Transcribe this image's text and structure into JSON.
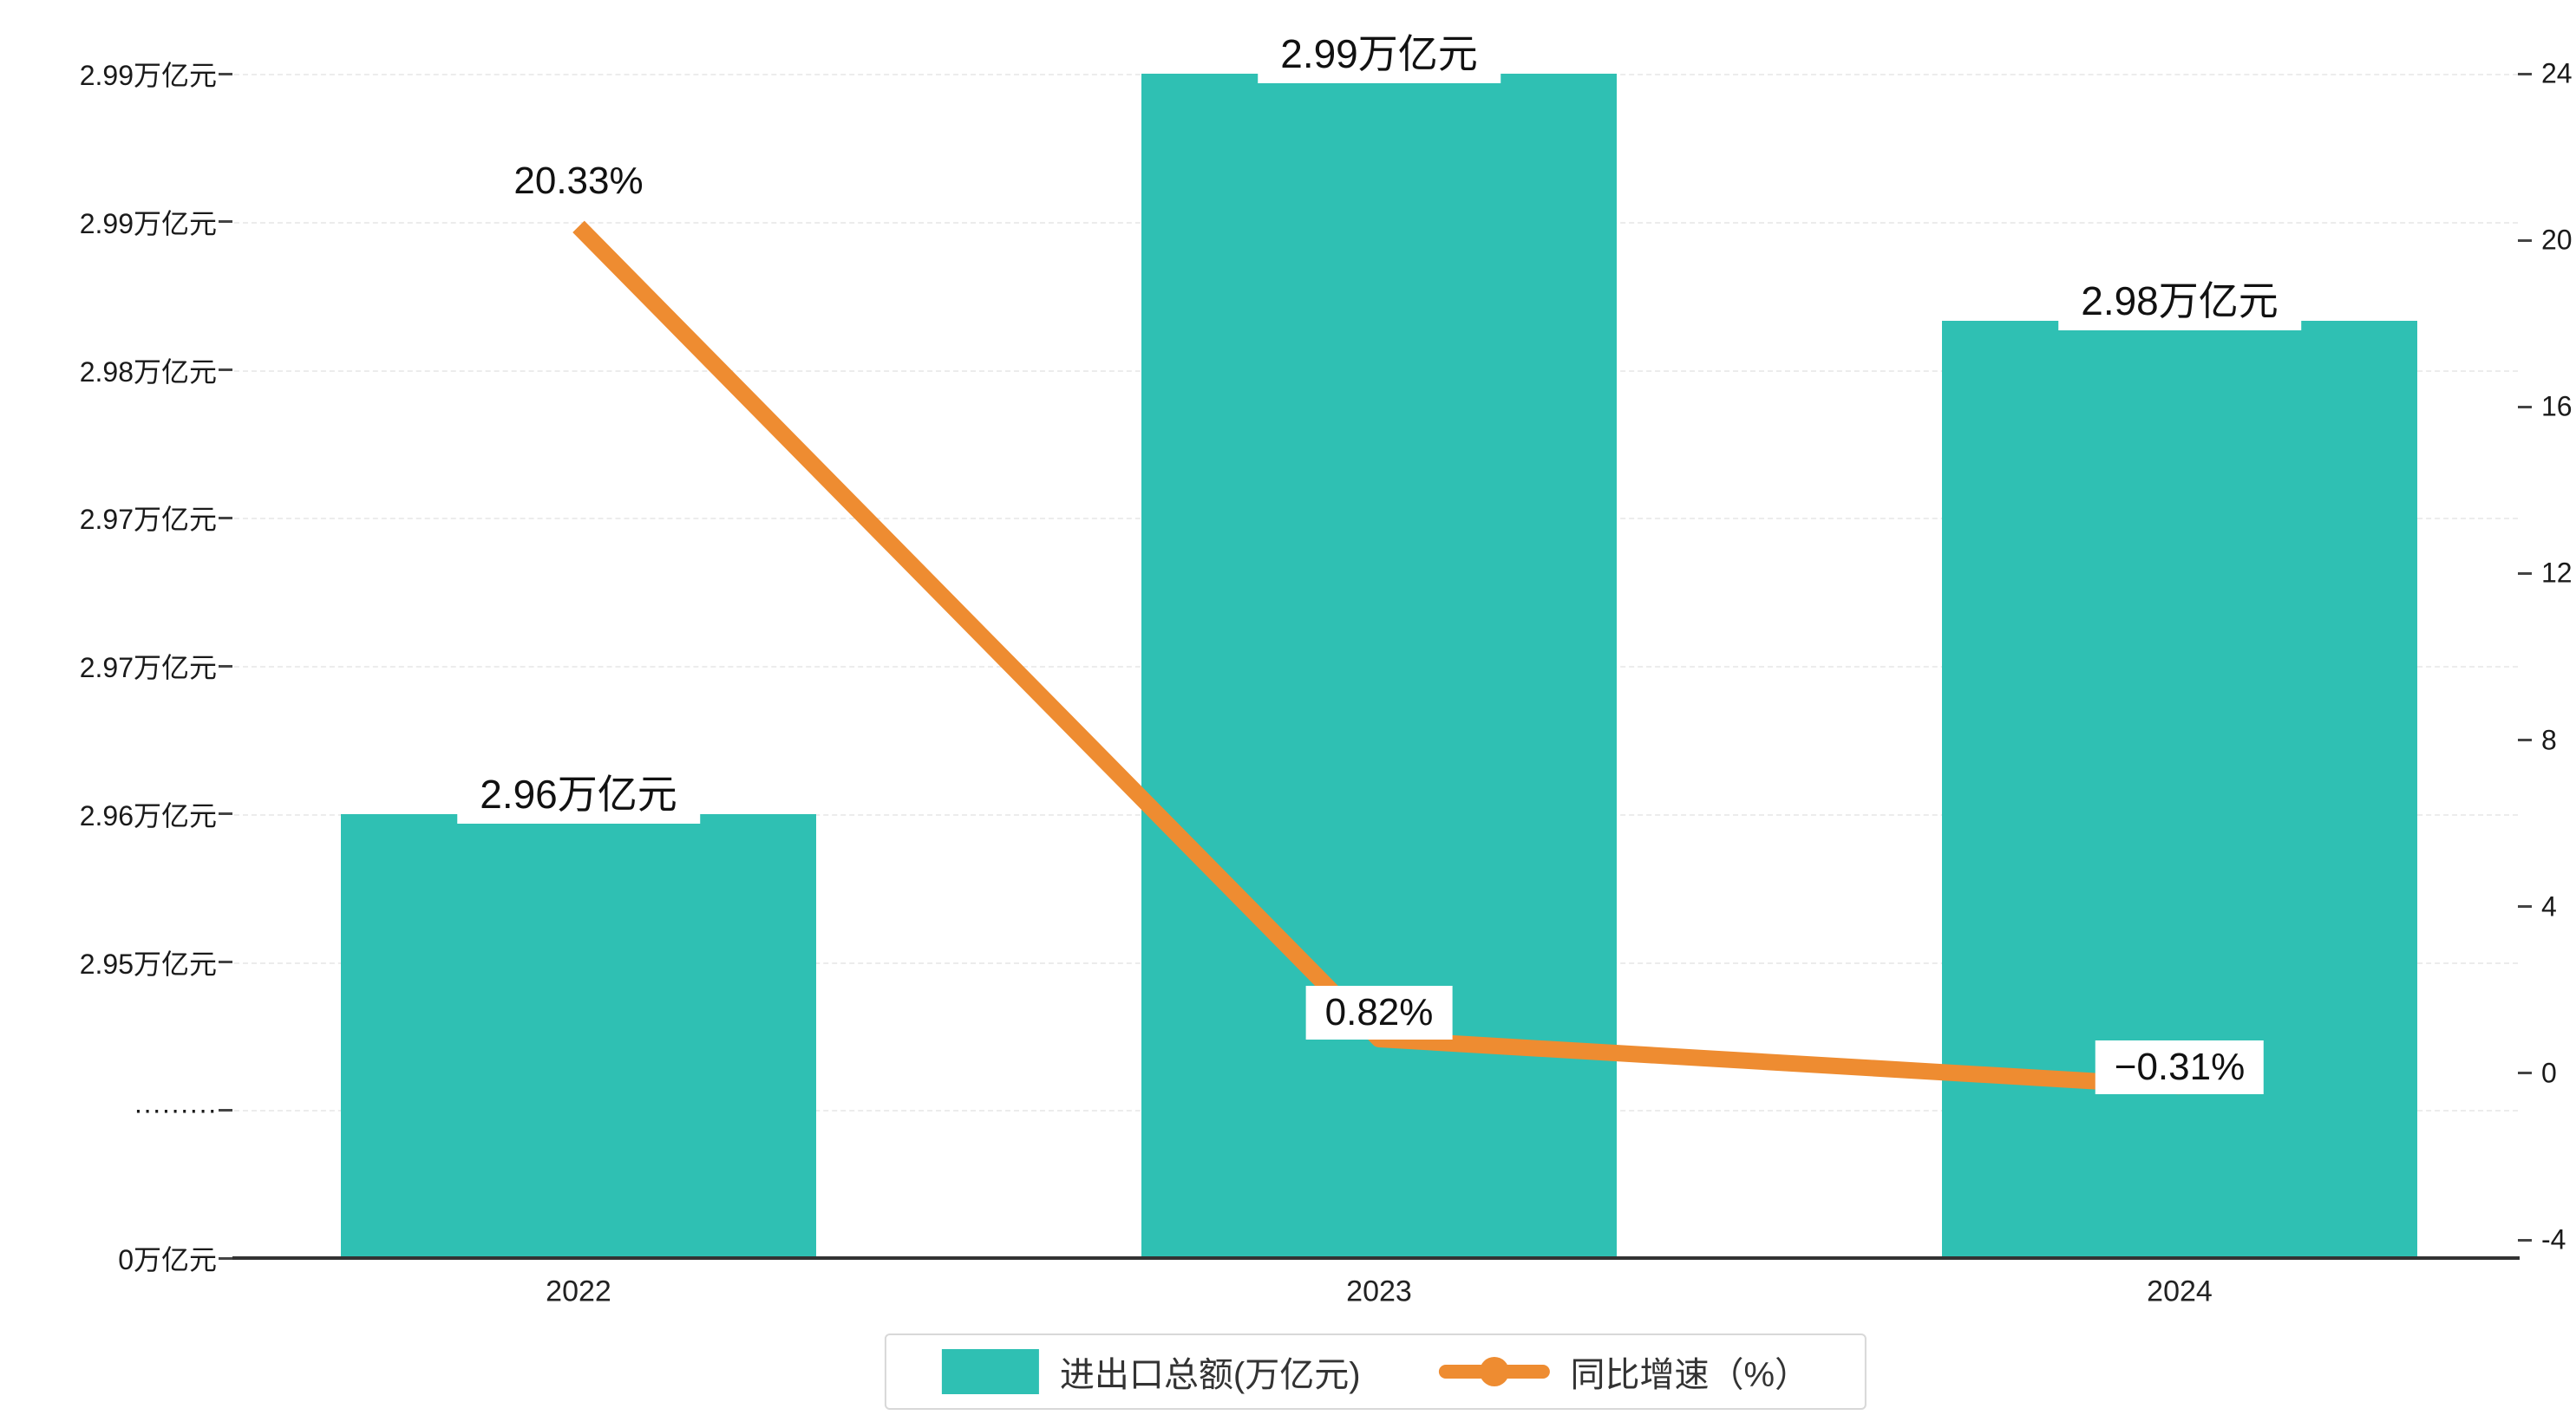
{
  "chart_data": {
    "type": "bar+line",
    "categories": [
      "2022",
      "2023",
      "2024"
    ],
    "series": [
      {
        "name": "进出口总额(万亿元)",
        "type": "bar",
        "axis": "left",
        "values": [
          2.96,
          2.99,
          2.98
        ],
        "labels": [
          "2.96万亿元",
          "2.99万亿元",
          "2.98万亿元"
        ],
        "color": "#2FC0B3"
      },
      {
        "name": "同比增速（%）",
        "type": "line",
        "axis": "right",
        "values": [
          20.33,
          0.82,
          -0.31
        ],
        "labels": [
          "20.33%",
          "0.82%",
          "−0.31%"
        ],
        "color": "#EE8C31"
      }
    ],
    "left_axis": {
      "tick_labels": [
        "2.99万亿元",
        "2.99万亿元",
        "2.98万亿元",
        "2.97万亿元",
        "2.97万亿元",
        "2.96万亿元",
        "2.95万亿元",
        "·········",
        "0万亿元"
      ],
      "broken_axis": true
    },
    "right_axis": {
      "tick_labels": [
        "24",
        "20",
        "16",
        "12",
        "8",
        "4",
        "0",
        "-4"
      ],
      "max": 24,
      "min": -4
    },
    "x_axis": {
      "labels": [
        "2022",
        "2023",
        "2024"
      ]
    },
    "legend": [
      {
        "label": "进出口总额(万亿元)",
        "marker": "square",
        "color": "#2FC0B3"
      },
      {
        "label": "同比增速（%）",
        "marker": "line-dot",
        "color": "#EE8C31"
      }
    ],
    "grid": true,
    "legend_position": "bottom",
    "background": "#ffffff"
  }
}
